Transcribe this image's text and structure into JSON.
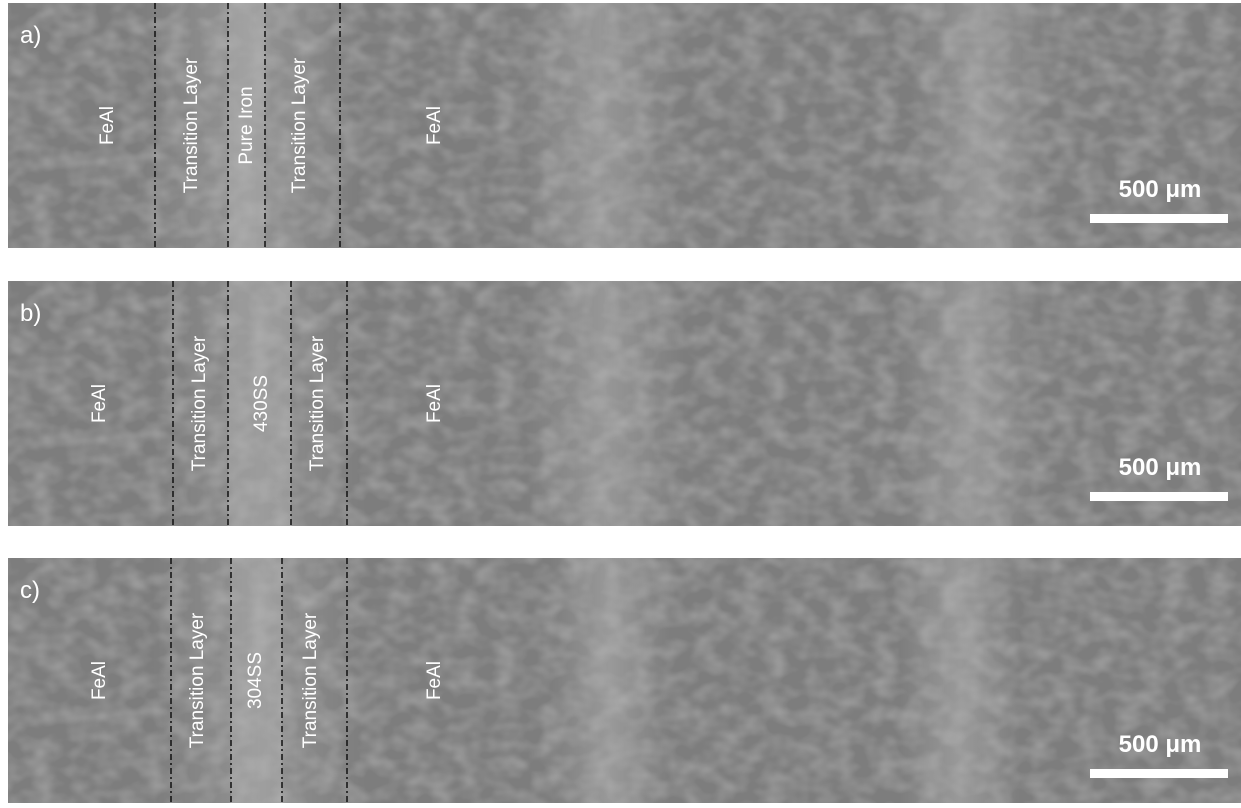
{
  "panels": [
    {
      "label": "a)",
      "regions": [
        "FeAl",
        "Transition Layer",
        "Pure Iron",
        "Transition Layer",
        "FeAl"
      ],
      "scale_bar": "500 μm"
    },
    {
      "label": "b)",
      "regions": [
        "FeAl",
        "Transition Layer",
        "430SS",
        "Transition Layer",
        "FeAl"
      ],
      "scale_bar": "500 μm"
    },
    {
      "label": "c)",
      "regions": [
        "FeAl",
        "Transition Layer",
        "304SS",
        "Transition Layer",
        "FeAl"
      ],
      "scale_bar": "500 μm"
    }
  ]
}
